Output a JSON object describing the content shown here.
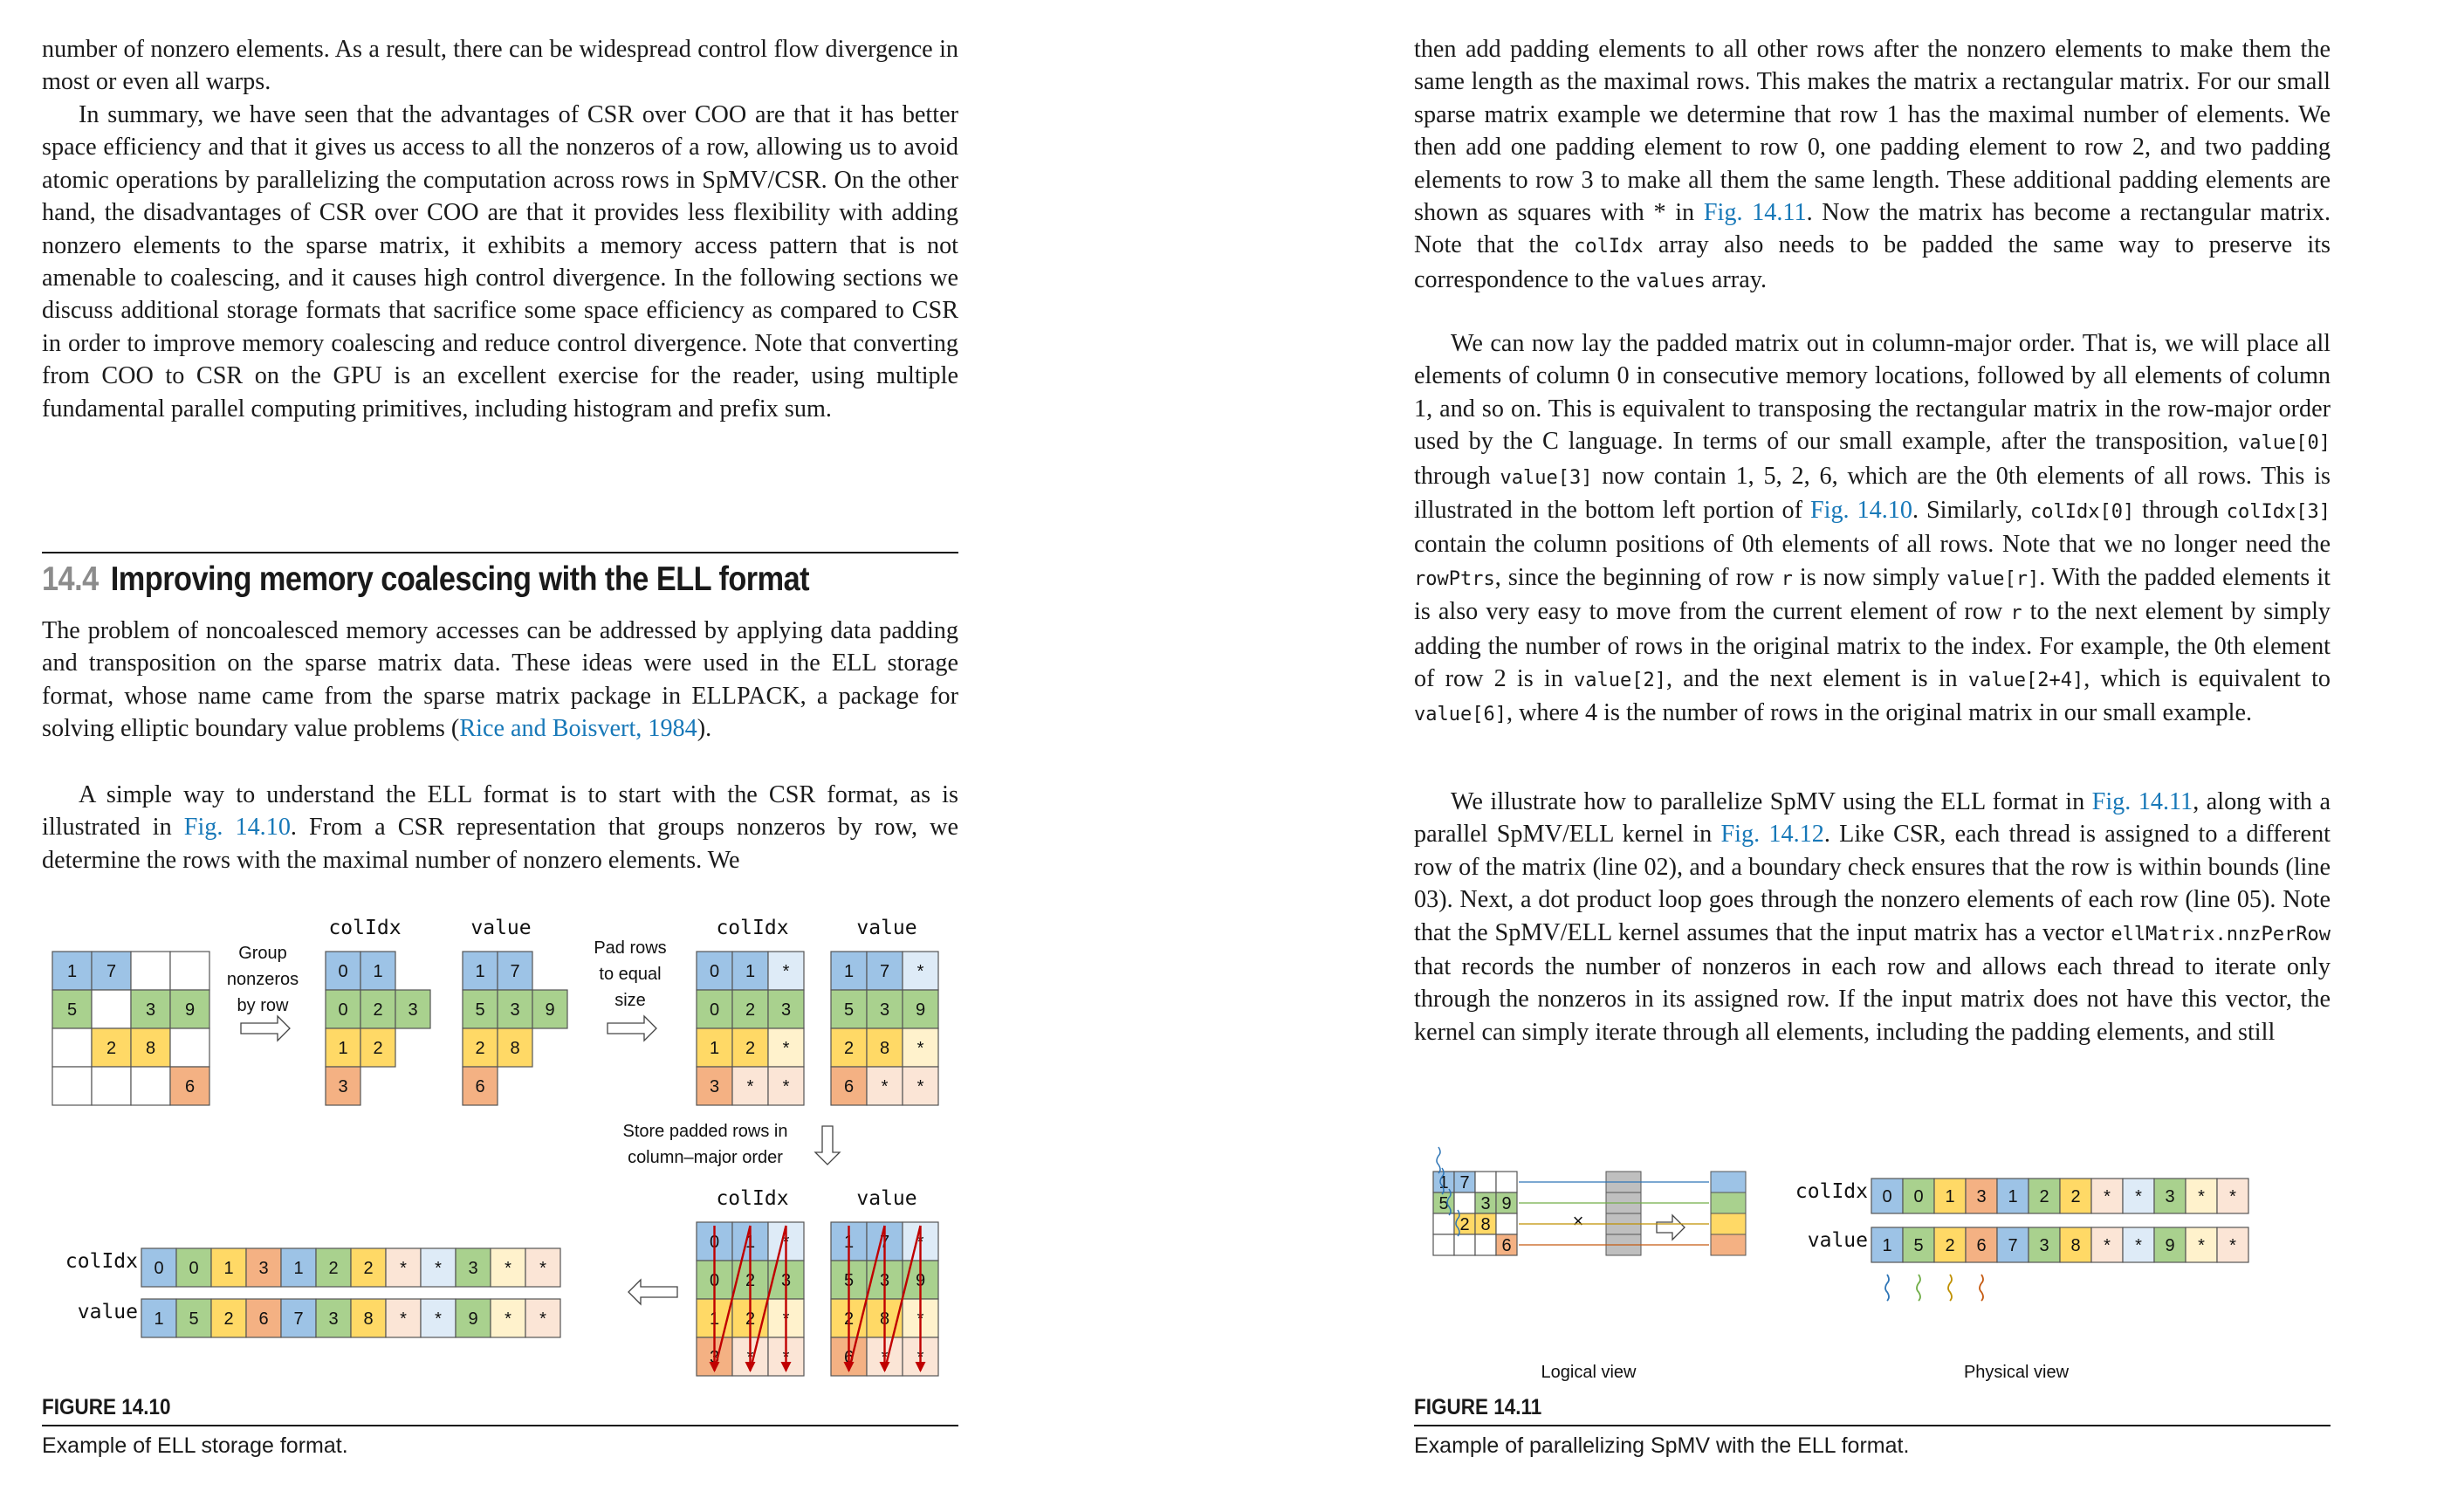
{
  "left": {
    "p1": "number of nonzero elements. As a result, there can be widespread control flow divergence in most or even all warps.",
    "p2": "In summary, we have seen that the advantages of CSR over COO are that it has better space efficiency and that it gives us access to all the nonzeros of a row, allowing us to avoid atomic operations by parallelizing the computation across rows in SpMV/CSR. On the other hand, the disadvantages of CSR over COO are that it provides less flexibility with adding nonzero elements to the sparse matrix, it exhibits a memory access pattern that is not amenable to coalescing, and it causes high control divergence. In the following sections we discuss additional storage formats that sacrifice some space efficiency as compared to CSR in order to improve memory coalescing and reduce control divergence. Note that converting from COO to CSR on the GPU is an excellent exercise for the reader, using multiple fundamental parallel computing primitives, including histogram and prefix sum.",
    "section_number": "14.4",
    "section_title": "Improving memory coalescing with the ELL format",
    "p3_a": "The problem of noncoalesced memory accesses can be addressed by applying data padding and transposition on the sparse matrix data. These ideas were used in the ELL storage format, whose name came from the sparse matrix package in ELLPACK, a package for solving elliptic boundary value problems (",
    "p3_link": "Rice and Boisvert, 1984",
    "p3_b": ").",
    "p4_a": "A simple way to understand the ELL format is to start with the CSR format, as is illustrated in ",
    "p4_link": "Fig. 14.10",
    "p4_b": ". From a CSR representation that groups nonzeros by row, we determine the rows with the maximal number of nonzero elements. We"
  },
  "fig10": {
    "label": "FIGURE 14.10",
    "caption": "Example of ELL storage format.",
    "group_text": [
      "Group",
      "nonzeros",
      "by row"
    ],
    "pad_text": [
      "Pad rows",
      "to equal",
      "size"
    ],
    "store_text": [
      "Store padded rows in",
      "column–major order"
    ],
    "colidx_label": "colIdx",
    "value_label": "value",
    "matrix": [
      [
        "1",
        "7",
        "",
        ""
      ],
      [
        "5",
        "",
        "3",
        "9"
      ],
      [
        "",
        "2",
        "8",
        ""
      ],
      [
        "",
        "",
        "",
        "6"
      ]
    ],
    "csr_colidx": [
      [
        "0",
        "1"
      ],
      [
        "0",
        "2",
        "3"
      ],
      [
        "1",
        "2"
      ],
      [
        "3"
      ]
    ],
    "csr_value": [
      [
        "1",
        "7"
      ],
      [
        "5",
        "3",
        "9"
      ],
      [
        "2",
        "8"
      ],
      [
        "6"
      ]
    ],
    "pad_colidx": [
      [
        "0",
        "1",
        "*"
      ],
      [
        "0",
        "2",
        "3"
      ],
      [
        "1",
        "2",
        "*"
      ],
      [
        "3",
        "*",
        "*"
      ]
    ],
    "pad_value": [
      [
        "1",
        "7",
        "*"
      ],
      [
        "5",
        "3",
        "9"
      ],
      [
        "2",
        "8",
        "*"
      ],
      [
        "6",
        "*",
        "*"
      ]
    ],
    "flat_colidx": [
      "0",
      "0",
      "1",
      "3",
      "1",
      "2",
      "2",
      "*",
      "*",
      "3",
      "*",
      "*"
    ],
    "flat_value": [
      "1",
      "5",
      "2",
      "6",
      "7",
      "3",
      "8",
      "*",
      "*",
      "9",
      "*",
      "*"
    ]
  },
  "right": {
    "p1_a": "then add padding elements to all other rows after the nonzero elements to make them the same length as the maximal rows. This makes the matrix a rectangular matrix. For our small sparse matrix example we determine that row 1 has the maximal number of elements. We then add one padding element to row 0, one padding element to row 2, and two padding elements to row 3 to make all them the same length. These additional padding elements are shown as squares with * in ",
    "p1_link": "Fig. 14.11",
    "p1_b": ". Now the matrix has become a rectangular matrix. Note that the ",
    "p1_code1": "colIdx",
    "p1_c": " array also needs to be padded the same way to preserve its correspondence to the ",
    "p1_code2": "values",
    "p1_d": " array.",
    "p2_a": "We can now lay the padded matrix out in column-major order. That is, we will place all elements of column 0 in consecutive memory locations, followed by all elements of column 1, and so on. This is equivalent to transposing the rectangular matrix in the row-major order used by the C language. In terms of our small example, after the transposition, ",
    "p2_code1": "value[0]",
    "p2_b": " through ",
    "p2_code2": "value[3]",
    "p2_c": " now contain 1, 5, 2, 6, which are the 0th elements of all rows. This is illustrated in the bottom left portion of ",
    "p2_link": "Fig. 14.10",
    "p2_d": ". Similarly, ",
    "p2_code3": "colIdx[0]",
    "p2_e": " through ",
    "p2_code4": "colIdx[3]",
    "p2_f": " contain the column positions of 0th elements of all rows. Note that we no longer need the ",
    "p2_code5": "rowPtrs",
    "p2_g": ", since the beginning of row ",
    "p2_code6": "r",
    "p2_h": " is now simply ",
    "p2_code7": "value[r]",
    "p2_i": ". With the padded elements it is also very easy to move from the current element of row ",
    "p2_code8": "r",
    "p2_j": " to the next element by simply adding the number of rows in the original matrix to the index. For example, the 0th element of row 2 is in ",
    "p2_code9": "value[2]",
    "p2_k": ", and the next element is in ",
    "p2_code10": "value[2+4]",
    "p2_l": ", which is equivalent to ",
    "p2_code11": "value[6]",
    "p2_m": ", where 4 is the number of rows in the original matrix in our small example.",
    "p3_a": "We illustrate how to parallelize SpMV using the ELL format in ",
    "p3_link1": "Fig. 14.11",
    "p3_b": ", along with a parallel SpMV/ELL kernel in ",
    "p3_link2": "Fig. 14.12",
    "p3_c": ". Like CSR, each thread is assigned to a different row of the matrix (line 02), and a boundary check ensures that the row is within bounds (line 03). Next, a dot product loop goes through the nonzero elements of each row (line 05). Note that the SpMV/ELL kernel assumes that the input matrix has a vector ",
    "p3_code1": "ellMatrix.nnzPerRow",
    "p3_d": " that records the number of nonzeros in each row and allows each thread to iterate only through the nonzeros in its assigned row. If the input matrix does not have this vector, the kernel can simply iterate through all elements, including the padding elements, and still"
  },
  "fig11": {
    "label": "FIGURE 14.11",
    "caption": "Example of parallelizing SpMV with the ELL format.",
    "logical_label": "Logical view",
    "physical_label": "Physical view",
    "times_sign": "×",
    "colidx_label": "colIdx",
    "value_label": "value"
  },
  "colors": {
    "blue": "#9dc3e6",
    "green": "#a9d18e",
    "yellow": "#ffd966",
    "orange": "#f4b183",
    "pad_blue": "#deebf7",
    "pad_yellow": "#fff2cc",
    "pad_orange": "#fbe5d6",
    "link": "#1778b8",
    "arrow_red": "#c00000"
  }
}
